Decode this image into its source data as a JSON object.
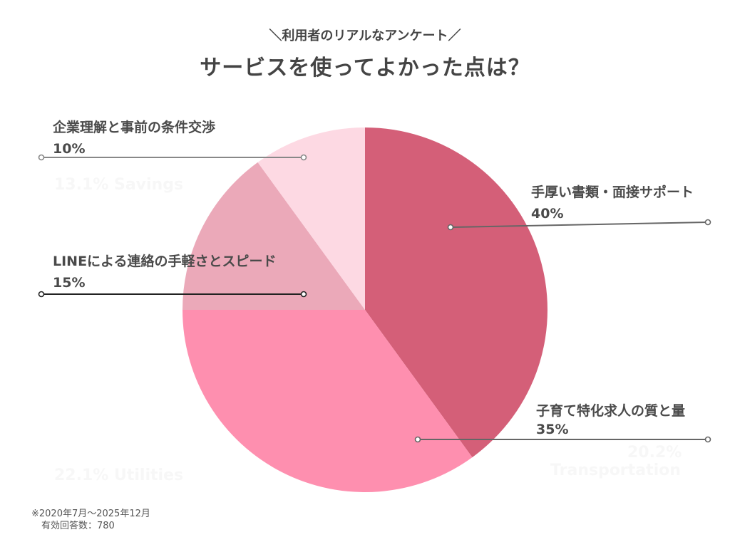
{
  "header": {
    "subtitle": "＼利用者のリアルなアンケート／",
    "title": "サービスを使ってよかった点は？"
  },
  "chart_data": {
    "type": "pie",
    "title": "サービスを使ってよかった点は？",
    "start_angle_deg": 0,
    "direction": "clockwise",
    "slices": [
      {
        "label": "手厚い書類・面接サポート",
        "value": 40,
        "value_label": "40%",
        "color": "#d45f78"
      },
      {
        "label": "子育て特化求人の質と量",
        "value": 35,
        "value_label": "35%",
        "color": "#fe8faf"
      },
      {
        "label": "LINEによる連絡の手軽さとスピード",
        "value": 15,
        "value_label": "15%",
        "color": "#eba9b9"
      },
      {
        "label": "企業理解と事前の条件交渉",
        "value": 10,
        "value_label": "10%",
        "color": "#fdd9e3"
      }
    ],
    "background_labels": [
      "13.1% Savings",
      "22.1% Utilities",
      "20.2%",
      "Transportation"
    ]
  },
  "footnote": {
    "period": "※2020年7月〜2025年12月",
    "responses": "有効回答数：780"
  }
}
